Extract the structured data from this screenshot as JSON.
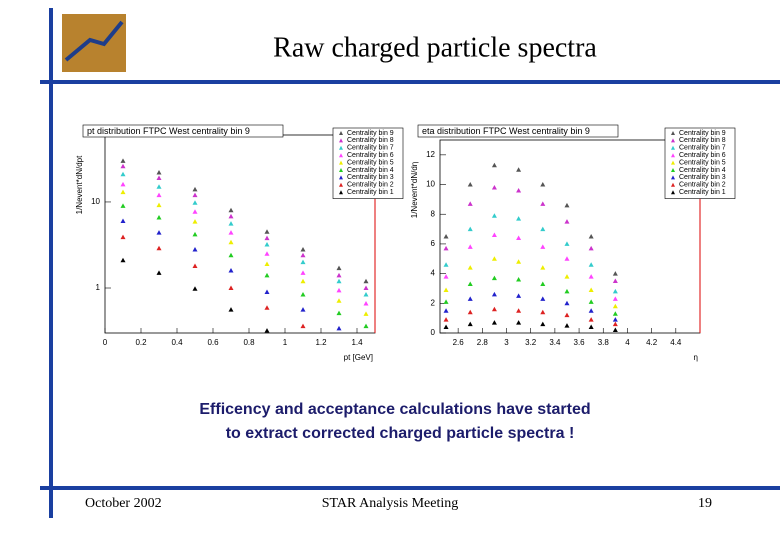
{
  "slide": {
    "title": "Raw charged particle spectra",
    "body": [
      "Efficency and acceptance calculations have started",
      "to extract corrected charged particle spectra !"
    ],
    "footer": {
      "date": "October 2002",
      "meeting": "STAR Analysis Meeting",
      "page": "19"
    }
  },
  "chart_data": [
    {
      "type": "scatter",
      "title": "pt distribution FTPC West centrality bin 9",
      "xlabel": "pt [GeV]",
      "ylabel": "1/Nevent*dN/dpt",
      "log_y": true,
      "xlim": [
        0,
        1.5
      ],
      "ylim": [
        0.3,
        60
      ],
      "xticks": [
        0,
        0.2,
        0.4,
        0.6,
        0.8,
        1,
        1.2,
        1.4
      ],
      "yticks": [
        1,
        10
      ],
      "x": [
        0.1,
        0.3,
        0.5,
        0.7,
        0.9,
        1.1,
        1.3,
        1.45
      ],
      "series": [
        {
          "name": "Centrality bin 9",
          "color": "#555555",
          "values": [
            30,
            22,
            14,
            8,
            4.5,
            2.8,
            1.7,
            1.2
          ]
        },
        {
          "name": "Centrality bin 8",
          "color": "#cc33cc",
          "values": [
            26,
            19,
            12,
            6.8,
            3.8,
            2.4,
            1.4,
            1.0
          ]
        },
        {
          "name": "Centrality bin 7",
          "color": "#33cccc",
          "values": [
            21,
            15,
            9.8,
            5.6,
            3.2,
            2.0,
            1.2,
            0.84
          ]
        },
        {
          "name": "Centrality bin 6",
          "color": "#ff44ff",
          "values": [
            16,
            12,
            7.7,
            4.4,
            2.5,
            1.5,
            0.94,
            0.66
          ]
        },
        {
          "name": "Centrality bin 5",
          "color": "#eeee00",
          "values": [
            13,
            9.2,
            5.9,
            3.4,
            1.9,
            1.2,
            0.71,
            0.5
          ]
        },
        {
          "name": "Centrality bin 4",
          "color": "#22cc22",
          "values": [
            9,
            6.6,
            4.2,
            2.4,
            1.4,
            0.84,
            0.51,
            0.36
          ]
        },
        {
          "name": "Centrality bin 3",
          "color": "#2222cc",
          "values": [
            6,
            4.4,
            2.8,
            1.6,
            0.9,
            0.56,
            0.34,
            null
          ]
        },
        {
          "name": "Centrality bin 2",
          "color": "#dd2222",
          "values": [
            3.9,
            2.9,
            1.8,
            1.0,
            0.59,
            0.36,
            null,
            null
          ]
        },
        {
          "name": "Centrality bin 1",
          "color": "#000000",
          "values": [
            2.1,
            1.5,
            0.98,
            0.56,
            0.32,
            null,
            null,
            null
          ]
        }
      ]
    },
    {
      "type": "scatter",
      "title": "eta distribution FTPC West centrality bin 9",
      "xlabel": "η",
      "ylabel": "1/Nevent*dN/dη",
      "log_y": false,
      "xlim": [
        2.45,
        4.6
      ],
      "ylim": [
        0,
        13
      ],
      "xticks": [
        2.6,
        2.8,
        3,
        3.2,
        3.4,
        3.6,
        3.8,
        4,
        4.2,
        4.4
      ],
      "yticks": [
        0,
        2,
        4,
        6,
        8,
        10,
        12
      ],
      "x": [
        2.5,
        2.7,
        2.9,
        3.1,
        3.3,
        3.5,
        3.7,
        3.9
      ],
      "series": [
        {
          "name": "Centrality bin 9",
          "color": "#555555",
          "values": [
            6.5,
            10,
            11.3,
            11,
            10,
            8.6,
            6.5,
            4
          ]
        },
        {
          "name": "Centrality bin 8",
          "color": "#cc33cc",
          "values": [
            5.7,
            8.7,
            9.8,
            9.6,
            8.7,
            7.5,
            5.7,
            3.5
          ]
        },
        {
          "name": "Centrality bin 7",
          "color": "#33cccc",
          "values": [
            4.6,
            7,
            7.9,
            7.7,
            7,
            6,
            4.6,
            2.8
          ]
        },
        {
          "name": "Centrality bin 6",
          "color": "#ff44ff",
          "values": [
            3.8,
            5.8,
            6.6,
            6.4,
            5.8,
            5,
            3.8,
            2.3
          ]
        },
        {
          "name": "Centrality bin 5",
          "color": "#eeee00",
          "values": [
            2.9,
            4.4,
            5,
            4.8,
            4.4,
            3.8,
            2.9,
            1.8
          ]
        },
        {
          "name": "Centrality bin 4",
          "color": "#22cc22",
          "values": [
            2.1,
            3.3,
            3.7,
            3.6,
            3.3,
            2.8,
            2.1,
            1.3
          ]
        },
        {
          "name": "Centrality bin 3",
          "color": "#2222cc",
          "values": [
            1.5,
            2.3,
            2.6,
            2.5,
            2.3,
            2.0,
            1.5,
            0.9
          ]
        },
        {
          "name": "Centrality bin 2",
          "color": "#dd2222",
          "values": [
            0.9,
            1.4,
            1.6,
            1.5,
            1.4,
            1.2,
            0.9,
            0.6
          ]
        },
        {
          "name": "Centrality bin 1",
          "color": "#000000",
          "values": [
            0.4,
            0.6,
            0.7,
            0.7,
            0.6,
            0.5,
            0.4,
            0.2
          ]
        }
      ]
    }
  ]
}
